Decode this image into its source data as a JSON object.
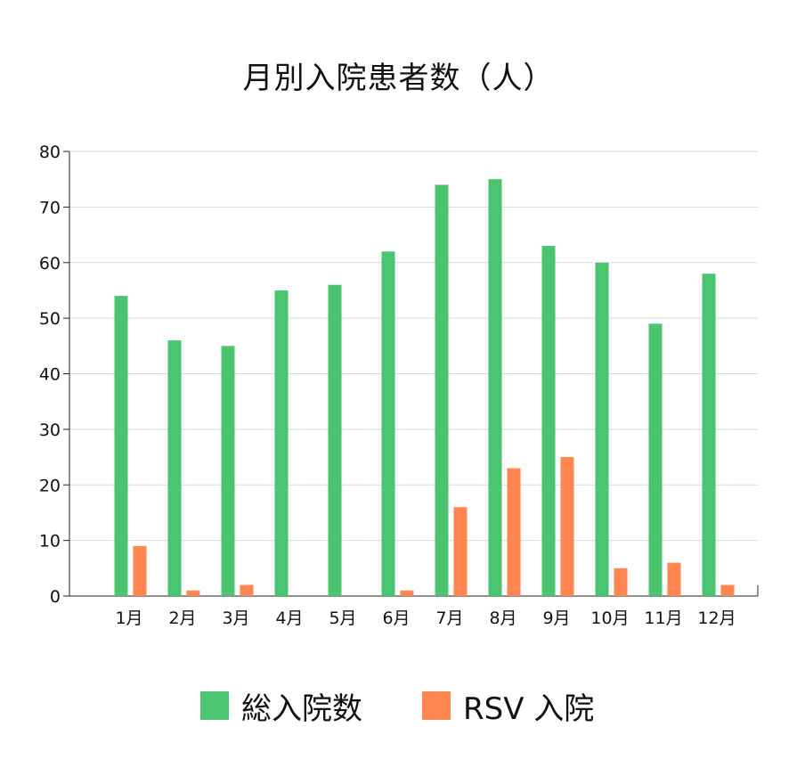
{
  "chart_data": {
    "type": "bar",
    "title": "月別入院患者数（人）",
    "xlabel": "",
    "ylabel": "",
    "categories": [
      "1月",
      "2月",
      "3月",
      "4月",
      "5月",
      "6月",
      "7月",
      "8月",
      "9月",
      "10月",
      "11月",
      "12月"
    ],
    "series": [
      {
        "name": "総入院数",
        "color": "#4bc56f",
        "values": [
          54,
          46,
          45,
          55,
          56,
          62,
          74,
          75,
          63,
          60,
          49,
          58
        ]
      },
      {
        "name": "RSV 入院",
        "color": "#ff8651",
        "values": [
          9,
          1,
          2,
          0,
          0,
          1,
          16,
          23,
          25,
          5,
          6,
          2
        ]
      }
    ],
    "ylim": [
      0,
      80
    ],
    "yticks": [
      0,
      10,
      20,
      30,
      40,
      50,
      60,
      70,
      80
    ],
    "grid": true,
    "legend": "bottom"
  }
}
